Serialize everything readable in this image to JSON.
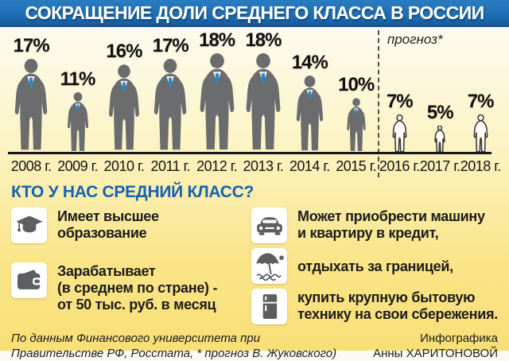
{
  "title": "СОКРАЩЕНИЕ ДОЛИ СРЕДНЕГО КЛАССА В РОССИИ",
  "colors": {
    "banner_blue": "#1d6bb1",
    "heading_blue": "#1563b2",
    "suit_gray": "#6b6c6e",
    "tie_blue": "#1f8ad2",
    "background_yellow": "#f8df76",
    "text_dark": "#1a1a1a"
  },
  "chart_data": {
    "type": "bar",
    "subtype": "pictogram-people",
    "title": "СОКРАЩЕНИЕ ДОЛИ СРЕДНЕГО КЛАССА В РОССИИ",
    "categories": [
      "2008 г.",
      "2009 г.",
      "2010 г.",
      "2011 г.",
      "2012 г.",
      "2013 г.",
      "2014 г.",
      "2015 г.",
      "2016 г.",
      "2017 г.",
      "2018 г."
    ],
    "values": [
      17,
      11,
      16,
      17,
      18,
      18,
      14,
      10,
      7,
      5,
      7
    ],
    "value_labels": [
      "17%",
      "11%",
      "16%",
      "17%",
      "18%",
      "18%",
      "14%",
      "10%",
      "7%",
      "5%",
      "7%"
    ],
    "unit": "%",
    "forecast_start_index": 8,
    "forecast_label": "прогноз*",
    "ylim": [
      0,
      18
    ],
    "grid": false,
    "legend": false
  },
  "middle_class": {
    "heading": "КТО У НАС СРЕДНИЙ КЛАСС?",
    "left_items": [
      {
        "icon": "graduation-cap-icon",
        "text": "Имеет высшее\nобразование"
      },
      {
        "icon": "wallet-icon",
        "text": "Зарабатывает\n(в среднем по стране) -\nот 50 тыс. руб. в месяц"
      }
    ],
    "right_items": [
      {
        "icon": "car-icon",
        "text": "Может приобрести машину\nи квартиру в кредит,"
      },
      {
        "icon": "beach-umbrella-icon",
        "text": "отдыхать за границей,"
      },
      {
        "icon": "refrigerator-icon",
        "text": "купить крупную бытовую\nтехнику на свои сбережения."
      }
    ]
  },
  "footer": {
    "source": "По данным Финансового университета при\nПравительстве РФ, Росстата, * прогноз В. Жуковского)",
    "credit": "Инфографика\nАнны ХАРИТОНОВОЙ"
  }
}
